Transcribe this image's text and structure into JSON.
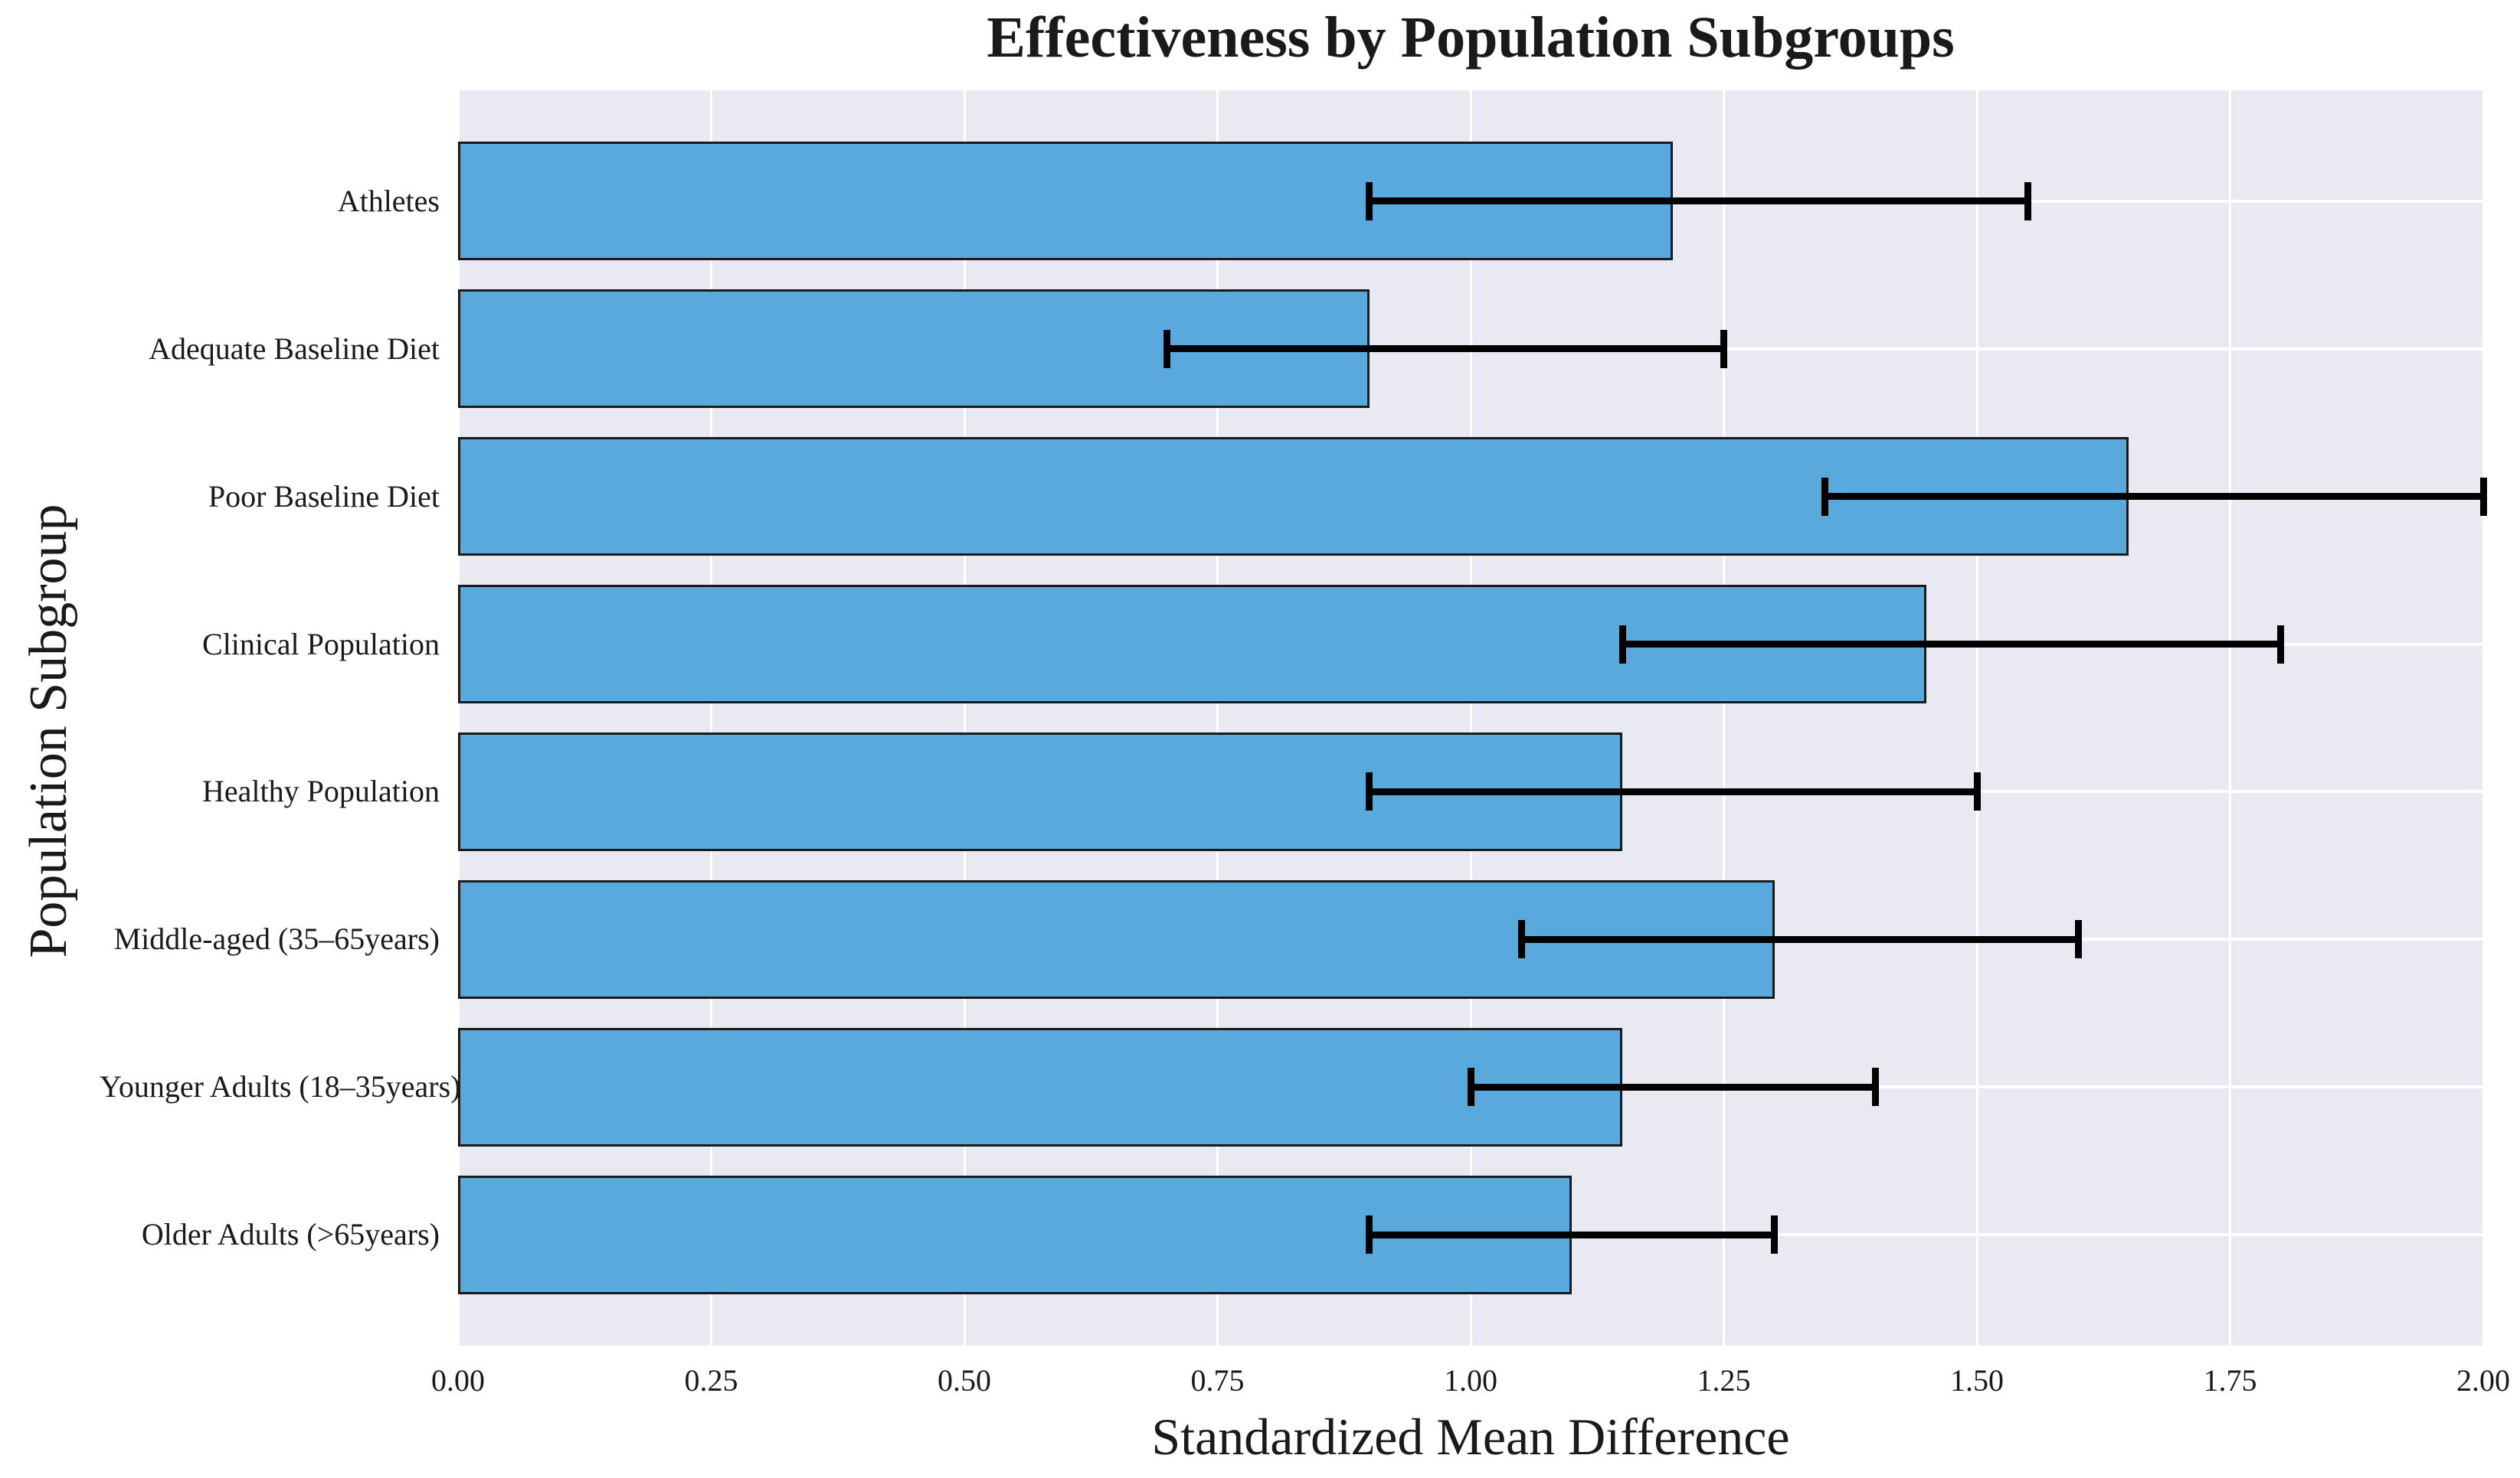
{
  "chart_data": {
    "type": "bar",
    "orientation": "horizontal",
    "title": "Effectiveness by Population Subgroups",
    "xlabel": "Standardized Mean Difference",
    "ylabel": "Population Subgroup",
    "xlim": [
      0,
      2
    ],
    "grid": true,
    "legend": "none",
    "categories": [
      "Athletes",
      "Adequate Baseline Diet",
      "Poor Baseline Diet",
      "Clinical Population",
      "Healthy Population",
      "Middle-aged (35–65years)",
      "Younger Adults (18–35years)",
      "Older Adults (>65years)"
    ],
    "values": [
      1.2,
      0.9,
      1.65,
      1.45,
      1.15,
      1.3,
      1.15,
      1.1
    ],
    "error_low": [
      0.9,
      0.7,
      1.35,
      1.15,
      0.9,
      1.05,
      1.0,
      0.9
    ],
    "error_high": [
      1.55,
      1.25,
      2.0,
      1.8,
      1.5,
      1.6,
      1.4,
      1.3
    ],
    "x_ticks": [
      {
        "label": "0.00",
        "value": 0.0
      },
      {
        "label": "0.25",
        "value": 0.25
      },
      {
        "label": "0.50",
        "value": 0.5
      },
      {
        "label": "0.75",
        "value": 0.75
      },
      {
        "label": "1.00",
        "value": 1.0
      },
      {
        "label": "1.25",
        "value": 1.25
      },
      {
        "label": "1.50",
        "value": 1.5
      },
      {
        "label": "1.75",
        "value": 1.75
      },
      {
        "label": "2.00",
        "value": 2.0
      }
    ],
    "colors": {
      "bar_fill": "#5aa9dc",
      "bar_edge": "#1a1a1a",
      "error_bar": "#000000",
      "plot_background": "#e9e9f1",
      "gridline": "#ffffff",
      "text": "#1a1a1a"
    }
  }
}
